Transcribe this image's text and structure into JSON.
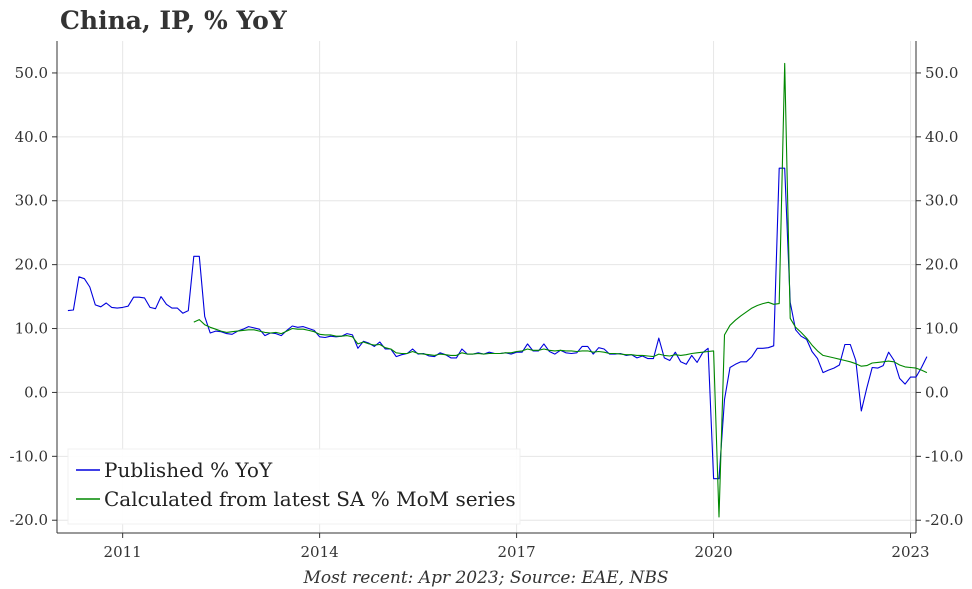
{
  "header": {
    "title": "China, IP, % YoY"
  },
  "source_note": "Most recent: Apr 2023; Source: EAE, NBS",
  "colors": {
    "published": "#0000dd",
    "calculated": "#008800",
    "grid": "#e6e6e6",
    "axis": "#333333"
  },
  "chart_data": {
    "type": "line",
    "title": "China, IP, % YoY",
    "xlabel": "",
    "ylabel": "",
    "xlim": [
      "2010-01",
      "2023-02"
    ],
    "ylim": [
      -22,
      55
    ],
    "x_ticks": [
      "2011",
      "2014",
      "2017",
      "2020",
      "2023"
    ],
    "y_ticks": [
      "-20.0",
      "-10.0",
      "0.0",
      "10.0",
      "20.0",
      "30.0",
      "40.0",
      "50.0"
    ],
    "y_tick_values": [
      -20,
      -10,
      0,
      10,
      20,
      30,
      40,
      50
    ],
    "grid": true,
    "legend_position": "bottom-left",
    "series": [
      {
        "name": "Published % YoY",
        "color": "#0000dd",
        "points": [
          [
            "2010-03",
            12.8
          ],
          [
            "2010-04",
            12.9
          ],
          [
            "2010-05",
            18.1
          ],
          [
            "2010-06",
            17.8
          ],
          [
            "2010-07",
            16.5
          ],
          [
            "2010-08",
            13.7
          ],
          [
            "2010-09",
            13.4
          ],
          [
            "2010-10",
            14.0
          ],
          [
            "2010-11",
            13.3
          ],
          [
            "2010-12",
            13.2
          ],
          [
            "2011-01",
            13.3
          ],
          [
            "2011-02",
            13.5
          ],
          [
            "2011-03",
            14.9
          ],
          [
            "2011-04",
            14.9
          ],
          [
            "2011-05",
            14.8
          ],
          [
            "2011-06",
            13.3
          ],
          [
            "2011-07",
            13.1
          ],
          [
            "2011-08",
            15.0
          ],
          [
            "2011-09",
            13.8
          ],
          [
            "2011-10",
            13.2
          ],
          [
            "2011-11",
            13.2
          ],
          [
            "2011-12",
            12.4
          ],
          [
            "2012-01",
            12.8
          ],
          [
            "2012-02",
            21.3
          ],
          [
            "2012-03",
            21.3
          ],
          [
            "2012-04",
            11.9
          ],
          [
            "2012-05",
            9.3
          ],
          [
            "2012-06",
            9.6
          ],
          [
            "2012-07",
            9.5
          ],
          [
            "2012-08",
            9.2
          ],
          [
            "2012-09",
            9.1
          ],
          [
            "2012-10",
            9.6
          ],
          [
            "2012-11",
            9.9
          ],
          [
            "2012-12",
            10.3
          ],
          [
            "2013-01",
            10.1
          ],
          [
            "2013-02",
            9.9
          ],
          [
            "2013-03",
            8.9
          ],
          [
            "2013-04",
            9.3
          ],
          [
            "2013-05",
            9.2
          ],
          [
            "2013-06",
            8.9
          ],
          [
            "2013-07",
            9.7
          ],
          [
            "2013-08",
            10.4
          ],
          [
            "2013-09",
            10.2
          ],
          [
            "2013-10",
            10.3
          ],
          [
            "2013-11",
            10.0
          ],
          [
            "2013-12",
            9.7
          ],
          [
            "2014-01",
            8.7
          ],
          [
            "2014-02",
            8.6
          ],
          [
            "2014-03",
            8.8
          ],
          [
            "2014-04",
            8.7
          ],
          [
            "2014-05",
            8.8
          ],
          [
            "2014-06",
            9.2
          ],
          [
            "2014-07",
            9.0
          ],
          [
            "2014-08",
            6.9
          ],
          [
            "2014-09",
            8.0
          ],
          [
            "2014-10",
            7.7
          ],
          [
            "2014-11",
            7.2
          ],
          [
            "2014-12",
            7.9
          ],
          [
            "2015-01",
            6.8
          ],
          [
            "2015-02",
            6.8
          ],
          [
            "2015-03",
            5.6
          ],
          [
            "2015-04",
            5.9
          ],
          [
            "2015-05",
            6.1
          ],
          [
            "2015-06",
            6.8
          ],
          [
            "2015-07",
            6.0
          ],
          [
            "2015-08",
            6.1
          ],
          [
            "2015-09",
            5.7
          ],
          [
            "2015-10",
            5.6
          ],
          [
            "2015-11",
            6.2
          ],
          [
            "2015-12",
            5.9
          ],
          [
            "2016-01",
            5.4
          ],
          [
            "2016-02",
            5.4
          ],
          [
            "2016-03",
            6.8
          ],
          [
            "2016-04",
            6.0
          ],
          [
            "2016-05",
            6.0
          ],
          [
            "2016-06",
            6.2
          ],
          [
            "2016-07",
            6.0
          ],
          [
            "2016-08",
            6.3
          ],
          [
            "2016-09",
            6.1
          ],
          [
            "2016-10",
            6.1
          ],
          [
            "2016-11",
            6.2
          ],
          [
            "2016-12",
            6.0
          ],
          [
            "2017-01",
            6.3
          ],
          [
            "2017-02",
            6.3
          ],
          [
            "2017-03",
            7.6
          ],
          [
            "2017-04",
            6.5
          ],
          [
            "2017-05",
            6.5
          ],
          [
            "2017-06",
            7.6
          ],
          [
            "2017-07",
            6.4
          ],
          [
            "2017-08",
            6.0
          ],
          [
            "2017-09",
            6.6
          ],
          [
            "2017-10",
            6.2
          ],
          [
            "2017-11",
            6.1
          ],
          [
            "2017-12",
            6.2
          ],
          [
            "2018-01",
            7.2
          ],
          [
            "2018-02",
            7.2
          ],
          [
            "2018-03",
            6.0
          ],
          [
            "2018-04",
            7.0
          ],
          [
            "2018-05",
            6.8
          ],
          [
            "2018-06",
            6.0
          ],
          [
            "2018-07",
            6.0
          ],
          [
            "2018-08",
            6.1
          ],
          [
            "2018-09",
            5.8
          ],
          [
            "2018-10",
            5.9
          ],
          [
            "2018-11",
            5.4
          ],
          [
            "2018-12",
            5.7
          ],
          [
            "2019-01",
            5.3
          ],
          [
            "2019-02",
            5.3
          ],
          [
            "2019-03",
            8.5
          ],
          [
            "2019-04",
            5.4
          ],
          [
            "2019-05",
            5.0
          ],
          [
            "2019-06",
            6.3
          ],
          [
            "2019-07",
            4.8
          ],
          [
            "2019-08",
            4.4
          ],
          [
            "2019-09",
            5.8
          ],
          [
            "2019-10",
            4.7
          ],
          [
            "2019-11",
            6.2
          ],
          [
            "2019-12",
            6.9
          ],
          [
            "2020-01",
            -13.5
          ],
          [
            "2020-02",
            -13.5
          ],
          [
            "2020-03",
            -1.1
          ],
          [
            "2020-04",
            3.9
          ],
          [
            "2020-05",
            4.4
          ],
          [
            "2020-06",
            4.8
          ],
          [
            "2020-07",
            4.8
          ],
          [
            "2020-08",
            5.6
          ],
          [
            "2020-09",
            6.9
          ],
          [
            "2020-10",
            6.9
          ],
          [
            "2020-11",
            7.0
          ],
          [
            "2020-12",
            7.3
          ],
          [
            "2021-01",
            35.1
          ],
          [
            "2021-02",
            35.1
          ],
          [
            "2021-03",
            14.1
          ],
          [
            "2021-04",
            9.8
          ],
          [
            "2021-05",
            8.8
          ],
          [
            "2021-06",
            8.3
          ],
          [
            "2021-07",
            6.4
          ],
          [
            "2021-08",
            5.3
          ],
          [
            "2021-09",
            3.1
          ],
          [
            "2021-10",
            3.5
          ],
          [
            "2021-11",
            3.8
          ],
          [
            "2021-12",
            4.3
          ],
          [
            "2022-01",
            7.5
          ],
          [
            "2022-02",
            7.5
          ],
          [
            "2022-03",
            5.0
          ],
          [
            "2022-04",
            -2.9
          ],
          [
            "2022-05",
            0.7
          ],
          [
            "2022-06",
            3.9
          ],
          [
            "2022-07",
            3.8
          ],
          [
            "2022-08",
            4.2
          ],
          [
            "2022-09",
            6.3
          ],
          [
            "2022-10",
            5.0
          ],
          [
            "2022-11",
            2.2
          ],
          [
            "2022-12",
            1.3
          ],
          [
            "2023-01",
            2.4
          ],
          [
            "2023-02",
            2.4
          ],
          [
            "2023-03",
            3.9
          ],
          [
            "2023-04",
            5.6
          ]
        ]
      },
      {
        "name": "Calculated from latest SA % MoM series",
        "color": "#008800",
        "points": [
          [
            "2012-02",
            11.0
          ],
          [
            "2012-03",
            11.4
          ],
          [
            "2012-04",
            10.6
          ],
          [
            "2012-05",
            10.2
          ],
          [
            "2012-06",
            9.9
          ],
          [
            "2012-07",
            9.6
          ],
          [
            "2012-08",
            9.4
          ],
          [
            "2012-09",
            9.5
          ],
          [
            "2012-10",
            9.6
          ],
          [
            "2012-11",
            9.7
          ],
          [
            "2012-12",
            9.8
          ],
          [
            "2013-01",
            9.8
          ],
          [
            "2013-02",
            9.6
          ],
          [
            "2013-03",
            9.4
          ],
          [
            "2013-04",
            9.3
          ],
          [
            "2013-05",
            9.4
          ],
          [
            "2013-06",
            9.2
          ],
          [
            "2013-07",
            9.6
          ],
          [
            "2013-08",
            10.0
          ],
          [
            "2013-09",
            9.9
          ],
          [
            "2013-10",
            9.9
          ],
          [
            "2013-11",
            9.7
          ],
          [
            "2013-12",
            9.5
          ],
          [
            "2014-01",
            9.1
          ],
          [
            "2014-02",
            9.0
          ],
          [
            "2014-03",
            9.0
          ],
          [
            "2014-04",
            8.8
          ],
          [
            "2014-05",
            8.8
          ],
          [
            "2014-06",
            8.9
          ],
          [
            "2014-07",
            8.7
          ],
          [
            "2014-08",
            7.6
          ],
          [
            "2014-09",
            7.9
          ],
          [
            "2014-10",
            7.6
          ],
          [
            "2014-11",
            7.4
          ],
          [
            "2014-12",
            7.5
          ],
          [
            "2015-01",
            7.0
          ],
          [
            "2015-02",
            6.8
          ],
          [
            "2015-03",
            6.2
          ],
          [
            "2015-04",
            6.1
          ],
          [
            "2015-05",
            6.1
          ],
          [
            "2015-06",
            6.4
          ],
          [
            "2015-07",
            6.1
          ],
          [
            "2015-08",
            6.0
          ],
          [
            "2015-09",
            5.9
          ],
          [
            "2015-10",
            5.8
          ],
          [
            "2015-11",
            6.0
          ],
          [
            "2015-12",
            5.9
          ],
          [
            "2016-01",
            5.8
          ],
          [
            "2016-02",
            5.8
          ],
          [
            "2016-03",
            6.2
          ],
          [
            "2016-04",
            6.0
          ],
          [
            "2016-05",
            6.0
          ],
          [
            "2016-06",
            6.1
          ],
          [
            "2016-07",
            6.0
          ],
          [
            "2016-08",
            6.1
          ],
          [
            "2016-09",
            6.1
          ],
          [
            "2016-10",
            6.1
          ],
          [
            "2016-11",
            6.2
          ],
          [
            "2016-12",
            6.2
          ],
          [
            "2017-01",
            6.4
          ],
          [
            "2017-02",
            6.5
          ],
          [
            "2017-03",
            6.8
          ],
          [
            "2017-04",
            6.6
          ],
          [
            "2017-05",
            6.6
          ],
          [
            "2017-06",
            6.8
          ],
          [
            "2017-07",
            6.6
          ],
          [
            "2017-08",
            6.5
          ],
          [
            "2017-09",
            6.6
          ],
          [
            "2017-10",
            6.5
          ],
          [
            "2017-11",
            6.5
          ],
          [
            "2017-12",
            6.4
          ],
          [
            "2018-01",
            6.5
          ],
          [
            "2018-02",
            6.5
          ],
          [
            "2018-03",
            6.3
          ],
          [
            "2018-04",
            6.4
          ],
          [
            "2018-05",
            6.3
          ],
          [
            "2018-06",
            6.1
          ],
          [
            "2018-07",
            6.1
          ],
          [
            "2018-08",
            6.0
          ],
          [
            "2018-09",
            5.9
          ],
          [
            "2018-10",
            5.9
          ],
          [
            "2018-11",
            5.8
          ],
          [
            "2018-12",
            5.8
          ],
          [
            "2019-01",
            5.7
          ],
          [
            "2019-02",
            5.6
          ],
          [
            "2019-03",
            6.0
          ],
          [
            "2019-04",
            5.8
          ],
          [
            "2019-05",
            5.7
          ],
          [
            "2019-06",
            5.9
          ],
          [
            "2019-07",
            5.8
          ],
          [
            "2019-08",
            5.9
          ],
          [
            "2019-09",
            6.1
          ],
          [
            "2019-10",
            6.2
          ],
          [
            "2019-11",
            6.3
          ],
          [
            "2019-12",
            6.4
          ],
          [
            "2020-01",
            6.5
          ],
          [
            "2020-02",
            -19.5
          ],
          [
            "2020-03",
            9.0
          ],
          [
            "2020-04",
            10.5
          ],
          [
            "2020-05",
            11.3
          ],
          [
            "2020-06",
            12.0
          ],
          [
            "2020-07",
            12.6
          ],
          [
            "2020-08",
            13.2
          ],
          [
            "2020-09",
            13.6
          ],
          [
            "2020-10",
            13.9
          ],
          [
            "2020-11",
            14.1
          ],
          [
            "2020-12",
            13.8
          ],
          [
            "2021-01",
            13.9
          ],
          [
            "2021-02",
            51.5
          ],
          [
            "2021-03",
            11.6
          ],
          [
            "2021-04",
            10.2
          ],
          [
            "2021-05",
            9.4
          ],
          [
            "2021-06",
            8.5
          ],
          [
            "2021-07",
            7.4
          ],
          [
            "2021-08",
            6.5
          ],
          [
            "2021-09",
            5.8
          ],
          [
            "2021-10",
            5.6
          ],
          [
            "2021-11",
            5.4
          ],
          [
            "2021-12",
            5.2
          ],
          [
            "2022-01",
            5.0
          ],
          [
            "2022-02",
            4.8
          ],
          [
            "2022-03",
            4.5
          ],
          [
            "2022-04",
            4.1
          ],
          [
            "2022-05",
            4.2
          ],
          [
            "2022-06",
            4.6
          ],
          [
            "2022-07",
            4.7
          ],
          [
            "2022-08",
            4.8
          ],
          [
            "2022-09",
            4.9
          ],
          [
            "2022-10",
            4.8
          ],
          [
            "2022-11",
            4.3
          ],
          [
            "2022-12",
            4.0
          ],
          [
            "2023-01",
            3.9
          ],
          [
            "2023-02",
            3.8
          ],
          [
            "2023-03",
            3.5
          ],
          [
            "2023-04",
            3.1
          ]
        ]
      }
    ]
  }
}
